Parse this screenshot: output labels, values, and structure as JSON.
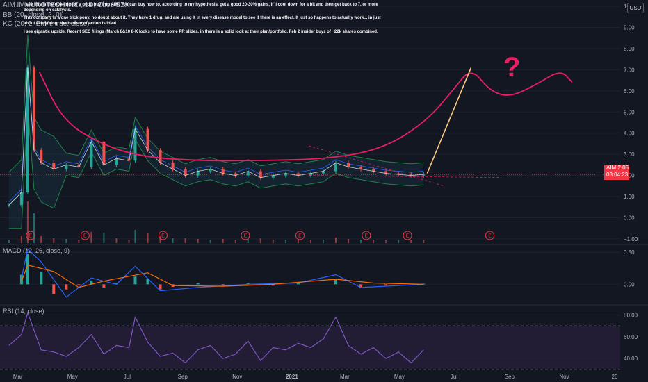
{
  "header": {
    "symbol_line": "AIM IMMUNOTECH INC., 1D, Cboe BZX",
    "bb_line": "BB (20, close, 2, 0)",
    "kc_line": "KC (20, 2, EMA, true, close)",
    "currency_badge": "USD"
  },
  "annotation_text": [
    "I see this is the opening for a good buy into AIM. You can buy now to, according to my hypothesis, get a good 20-30% gains, it'll cool down for a bit and then get back to 7, or more depending on catalysts.",
    "This company is a one trick pony, no doubt about it. They have 1 drug, and are using it in every disease model to see if there is an effect. It just so happens to actually work... in just about everything. Mechanism of action is ideal",
    "I see gigantic upside. Recent SEC filings (March 8&10 8-K looks to have some PR slides, in there is a solid look at their plan/portfolio, Feb 2 insider buys of ~22k shares combined."
  ],
  "price_tag": {
    "symbol": "AIM",
    "price": "2.05",
    "countdown": "03:04:23",
    "color": "#f23645"
  },
  "question_mark": "?",
  "earnings_marker_label": "E",
  "colors": {
    "background": "#131722",
    "candle_up": "#26a69a",
    "candle_down": "#ef5350",
    "bb_band": "#2962ff",
    "kc_band": "#1e8449",
    "projection_pink": "#e91e63",
    "projection_orange": "#ffcc80",
    "macd_line": "#2962ff",
    "signal_line": "#ff6d00",
    "rsi_line": "#7e57c2",
    "rsi_fill": "#2a1f3d"
  },
  "chart_data": [
    {
      "type": "candlestick",
      "title": "AIM IMMUNOTECH INC., 1D, Cboe BZX",
      "y_axis_ticks": [
        10.0,
        9.0,
        8.0,
        7.0,
        6.0,
        5.0,
        4.0,
        3.0,
        2.0,
        1.0,
        0.0,
        -1.0
      ],
      "y_axis_ticks_labels": [
        "10",
        "9.00",
        "8.00",
        "7.00",
        "6.00",
        "5.00",
        "4.00",
        "3.00",
        "2.00",
        "1.00",
        "0.00",
        "−1.00"
      ],
      "ylim": [
        -1.2,
        10.3
      ],
      "x_axis_ticks": [
        "Mar",
        "May",
        "Jul",
        "Sep",
        "Nov",
        "2021",
        "Mar",
        "May",
        "Jul",
        "Sep",
        "Nov",
        "20"
      ],
      "close_series": [
        {
          "date": "2020-02-20",
          "value": 0.6
        },
        {
          "date": "2020-03-05",
          "value": 1.2
        },
        {
          "date": "2020-03-12",
          "value": 7.1
        },
        {
          "date": "2020-03-19",
          "value": 3.2
        },
        {
          "date": "2020-03-27",
          "value": 2.6
        },
        {
          "date": "2020-04-10",
          "value": 2.3
        },
        {
          "date": "2020-04-24",
          "value": 2.5
        },
        {
          "date": "2020-05-08",
          "value": 2.4
        },
        {
          "date": "2020-05-22",
          "value": 3.6
        },
        {
          "date": "2020-06-05",
          "value": 2.5
        },
        {
          "date": "2020-06-19",
          "value": 2.8
        },
        {
          "date": "2020-07-03",
          "value": 2.7
        },
        {
          "date": "2020-07-10",
          "value": 4.2
        },
        {
          "date": "2020-07-24",
          "value": 3.2
        },
        {
          "date": "2020-08-07",
          "value": 2.6
        },
        {
          "date": "2020-08-21",
          "value": 2.3
        },
        {
          "date": "2020-09-04",
          "value": 2.0
        },
        {
          "date": "2020-09-18",
          "value": 2.2
        },
        {
          "date": "2020-10-02",
          "value": 2.3
        },
        {
          "date": "2020-10-16",
          "value": 2.1
        },
        {
          "date": "2020-10-30",
          "value": 2.0
        },
        {
          "date": "2020-11-13",
          "value": 2.2
        },
        {
          "date": "2020-11-27",
          "value": 1.9
        },
        {
          "date": "2020-12-11",
          "value": 2.0
        },
        {
          "date": "2020-12-25",
          "value": 2.1
        },
        {
          "date": "2021-01-08",
          "value": 2.0
        },
        {
          "date": "2021-01-22",
          "value": 2.1
        },
        {
          "date": "2021-02-05",
          "value": 2.2
        },
        {
          "date": "2021-02-19",
          "value": 2.6
        },
        {
          "date": "2021-03-05",
          "value": 2.4
        },
        {
          "date": "2021-03-19",
          "value": 2.3
        },
        {
          "date": "2021-04-02",
          "value": 2.2
        },
        {
          "date": "2021-04-16",
          "value": 2.1
        },
        {
          "date": "2021-04-30",
          "value": 2.05
        },
        {
          "date": "2021-05-14",
          "value": 2.0
        },
        {
          "date": "2021-05-28",
          "value": 2.05
        }
      ],
      "projection_curve": [
        {
          "date": "2020-03-25",
          "value": 6.9
        },
        {
          "date": "2020-04-20",
          "value": 4.6
        },
        {
          "date": "2020-06-01",
          "value": 3.5
        },
        {
          "date": "2020-07-15",
          "value": 2.9
        },
        {
          "date": "2020-09-15",
          "value": 2.7
        },
        {
          "date": "2020-12-01",
          "value": 2.7
        },
        {
          "date": "2021-02-15",
          "value": 2.8
        },
        {
          "date": "2021-04-15",
          "value": 3.3
        },
        {
          "date": "2021-06-01",
          "value": 4.6
        },
        {
          "date": "2021-07-01",
          "value": 6.1
        },
        {
          "date": "2021-07-20",
          "value": 7.1
        },
        {
          "date": "2021-08-10",
          "value": 6.0
        },
        {
          "date": "2021-09-01",
          "value": 5.7
        },
        {
          "date": "2021-10-01",
          "value": 6.3
        },
        {
          "date": "2021-10-28",
          "value": 7.0
        },
        {
          "date": "2021-11-10",
          "value": 6.4
        }
      ],
      "projection_arrow": {
        "from": {
          "date": "2021-06-01",
          "value": 2.1
        },
        "to": {
          "date": "2021-07-20",
          "value": 7.1
        }
      },
      "current_price": 2.05,
      "earnings_marker_dates": [
        "2020-03-15",
        "2020-05-15",
        "2020-08-10",
        "2020-11-10",
        "2021-01-10",
        "2021-03-25",
        "2021-05-10",
        "2021-08-10"
      ]
    },
    {
      "type": "bar",
      "title": "MACD (12, 26, close, 9)",
      "y_axis_ticks": [
        0.5,
        0.0
      ],
      "y_axis_ticks_labels": [
        "0.50",
        "0.00"
      ],
      "ylim": [
        -0.3,
        0.6
      ],
      "histogram": [
        {
          "date": "2020-03-05",
          "value": 0.15
        },
        {
          "date": "2020-03-12",
          "value": 0.48
        },
        {
          "date": "2020-03-27",
          "value": 0.2
        },
        {
          "date": "2020-04-10",
          "value": -0.15
        },
        {
          "date": "2020-04-24",
          "value": -0.08
        },
        {
          "date": "2020-05-08",
          "value": -0.02
        },
        {
          "date": "2020-05-22",
          "value": 0.06
        },
        {
          "date": "2020-06-05",
          "value": -0.05
        },
        {
          "date": "2020-06-19",
          "value": 0.02
        },
        {
          "date": "2020-07-10",
          "value": 0.12
        },
        {
          "date": "2020-07-24",
          "value": 0.08
        },
        {
          "date": "2020-08-07",
          "value": -0.08
        },
        {
          "date": "2020-08-21",
          "value": -0.04
        },
        {
          "date": "2020-09-18",
          "value": 0.02
        },
        {
          "date": "2020-10-16",
          "value": -0.01
        },
        {
          "date": "2020-11-13",
          "value": 0.02
        },
        {
          "date": "2020-12-11",
          "value": -0.02
        },
        {
          "date": "2021-01-08",
          "value": 0.03
        },
        {
          "date": "2021-02-19",
          "value": 0.08
        },
        {
          "date": "2021-03-19",
          "value": -0.05
        },
        {
          "date": "2021-04-16",
          "value": -0.02
        },
        {
          "date": "2021-05-28",
          "value": 0.01
        }
      ],
      "macd_line": [
        {
          "date": "2020-03-05",
          "value": 0.1
        },
        {
          "date": "2020-03-12",
          "value": 0.55
        },
        {
          "date": "2020-03-27",
          "value": 0.35
        },
        {
          "date": "2020-04-24",
          "value": -0.2
        },
        {
          "date": "2020-05-22",
          "value": 0.1
        },
        {
          "date": "2020-06-19",
          "value": 0.0
        },
        {
          "date": "2020-07-10",
          "value": 0.28
        },
        {
          "date": "2020-08-07",
          "value": -0.1
        },
        {
          "date": "2020-09-18",
          "value": -0.05
        },
        {
          "date": "2020-11-13",
          "value": 0.0
        },
        {
          "date": "2021-01-08",
          "value": 0.02
        },
        {
          "date": "2021-02-19",
          "value": 0.15
        },
        {
          "date": "2021-03-19",
          "value": -0.05
        },
        {
          "date": "2021-05-28",
          "value": 0.0
        }
      ],
      "signal_line": [
        {
          "date": "2020-03-05",
          "value": 0.05
        },
        {
          "date": "2020-03-12",
          "value": 0.3
        },
        {
          "date": "2020-04-10",
          "value": 0.2
        },
        {
          "date": "2020-05-08",
          "value": -0.05
        },
        {
          "date": "2020-06-05",
          "value": 0.05
        },
        {
          "date": "2020-07-24",
          "value": 0.18
        },
        {
          "date": "2020-08-21",
          "value": -0.02
        },
        {
          "date": "2020-10-16",
          "value": -0.03
        },
        {
          "date": "2020-12-11",
          "value": 0.0
        },
        {
          "date": "2021-02-19",
          "value": 0.08
        },
        {
          "date": "2021-04-02",
          "value": 0.02
        },
        {
          "date": "2021-05-28",
          "value": 0.0
        }
      ]
    },
    {
      "type": "line",
      "title": "RSI (14, close)",
      "y_axis_ticks": [
        80.0,
        60.0,
        40.0
      ],
      "y_axis_ticks_labels": [
        "80.00",
        "60.00",
        "40.00"
      ],
      "ylim": [
        28,
        88
      ],
      "bands": [
        70,
        30
      ],
      "series": [
        {
          "values": [
            {
              "date": "2020-02-20",
              "value": 52
            },
            {
              "date": "2020-03-05",
              "value": 62
            },
            {
              "date": "2020-03-12",
              "value": 82
            },
            {
              "date": "2020-03-27",
              "value": 48
            },
            {
              "date": "2020-04-10",
              "value": 46
            },
            {
              "date": "2020-04-24",
              "value": 42
            },
            {
              "date": "2020-05-08",
              "value": 50
            },
            {
              "date": "2020-05-22",
              "value": 62
            },
            {
              "date": "2020-06-05",
              "value": 44
            },
            {
              "date": "2020-06-19",
              "value": 52
            },
            {
              "date": "2020-07-03",
              "value": 50
            },
            {
              "date": "2020-07-10",
              "value": 78
            },
            {
              "date": "2020-07-24",
              "value": 55
            },
            {
              "date": "2020-08-07",
              "value": 42
            },
            {
              "date": "2020-08-21",
              "value": 45
            },
            {
              "date": "2020-09-04",
              "value": 36
            },
            {
              "date": "2020-09-18",
              "value": 48
            },
            {
              "date": "2020-10-02",
              "value": 52
            },
            {
              "date": "2020-10-16",
              "value": 40
            },
            {
              "date": "2020-10-30",
              "value": 44
            },
            {
              "date": "2020-11-13",
              "value": 56
            },
            {
              "date": "2020-11-27",
              "value": 38
            },
            {
              "date": "2020-12-11",
              "value": 50
            },
            {
              "date": "2020-12-25",
              "value": 48
            },
            {
              "date": "2021-01-08",
              "value": 54
            },
            {
              "date": "2021-01-22",
              "value": 50
            },
            {
              "date": "2021-02-05",
              "value": 58
            },
            {
              "date": "2021-02-19",
              "value": 78
            },
            {
              "date": "2021-03-05",
              "value": 52
            },
            {
              "date": "2021-03-19",
              "value": 44
            },
            {
              "date": "2021-04-02",
              "value": 50
            },
            {
              "date": "2021-04-16",
              "value": 40
            },
            {
              "date": "2021-04-30",
              "value": 46
            },
            {
              "date": "2021-05-14",
              "value": 36
            },
            {
              "date": "2021-05-28",
              "value": 48
            }
          ]
        }
      ]
    }
  ]
}
